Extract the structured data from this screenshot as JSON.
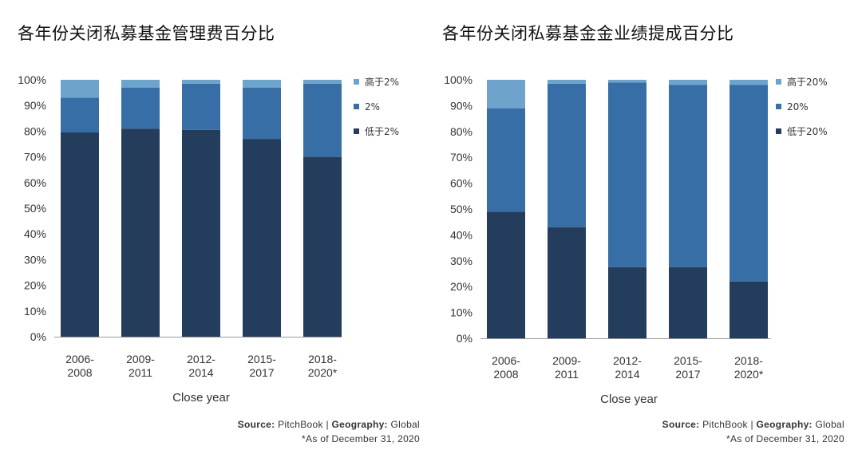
{
  "colors": {
    "low": "#243d5c",
    "mid": "#386ea6",
    "high": "#6ea3cc",
    "axis": "#999999"
  },
  "chart_data": [
    {
      "type": "bar",
      "stacked": true,
      "title": "各年份关闭私募基金管理费百分比",
      "categories": [
        [
          "2006-",
          "2008"
        ],
        [
          "2009-",
          "2011"
        ],
        [
          "2012-",
          "2014"
        ],
        [
          "2015-",
          "2017"
        ],
        [
          "2018-",
          "2020*"
        ]
      ],
      "series": [
        {
          "name": "低于2%",
          "values": [
            79.5,
            81,
            80.5,
            77,
            70
          ]
        },
        {
          "name": "2%",
          "values": [
            13.5,
            16,
            18,
            20,
            28.5
          ]
        },
        {
          "name": "高于2%",
          "values": [
            7,
            3,
            1.5,
            3,
            1.5
          ]
        }
      ],
      "legend": [
        "高于2%",
        "2%",
        "低于2%"
      ],
      "yticks": [
        "0%",
        "10%",
        "20%",
        "30%",
        "40%",
        "50%",
        "60%",
        "70%",
        "80%",
        "90%",
        "100%"
      ],
      "ylim": [
        0,
        100
      ],
      "xlabel": "Close year",
      "ylabel": "",
      "legend_position": "right"
    },
    {
      "type": "bar",
      "stacked": true,
      "title": "各年份关闭私募基金金业绩提成百分比",
      "categories": [
        [
          "2006-",
          "2008"
        ],
        [
          "2009-",
          "2011"
        ],
        [
          "2012-",
          "2014"
        ],
        [
          "2015-",
          "2017"
        ],
        [
          "2018-",
          "2020*"
        ]
      ],
      "series": [
        {
          "name": "低于20%",
          "values": [
            49,
            43,
            27.5,
            27.5,
            22
          ]
        },
        {
          "name": "20%",
          "values": [
            40,
            55.5,
            71.5,
            70.5,
            76
          ]
        },
        {
          "name": "高于20%",
          "values": [
            11,
            1.5,
            1,
            2,
            2
          ]
        }
      ],
      "legend": [
        "高于20%",
        "20%",
        "低于20%"
      ],
      "yticks": [
        "0%",
        "10%",
        "20%",
        "30%",
        "40%",
        "50%",
        "60%",
        "70%",
        "80%",
        "90%",
        "100%"
      ],
      "ylim": [
        0,
        100
      ],
      "xlabel": "Close year",
      "ylabel": "",
      "legend_position": "right"
    }
  ],
  "source": {
    "label": "Source:",
    "value": "PitchBook",
    "sep": "|",
    "geo_label": "Geography:",
    "geo_value": "Global",
    "note": "*As of December 31, 2020"
  }
}
